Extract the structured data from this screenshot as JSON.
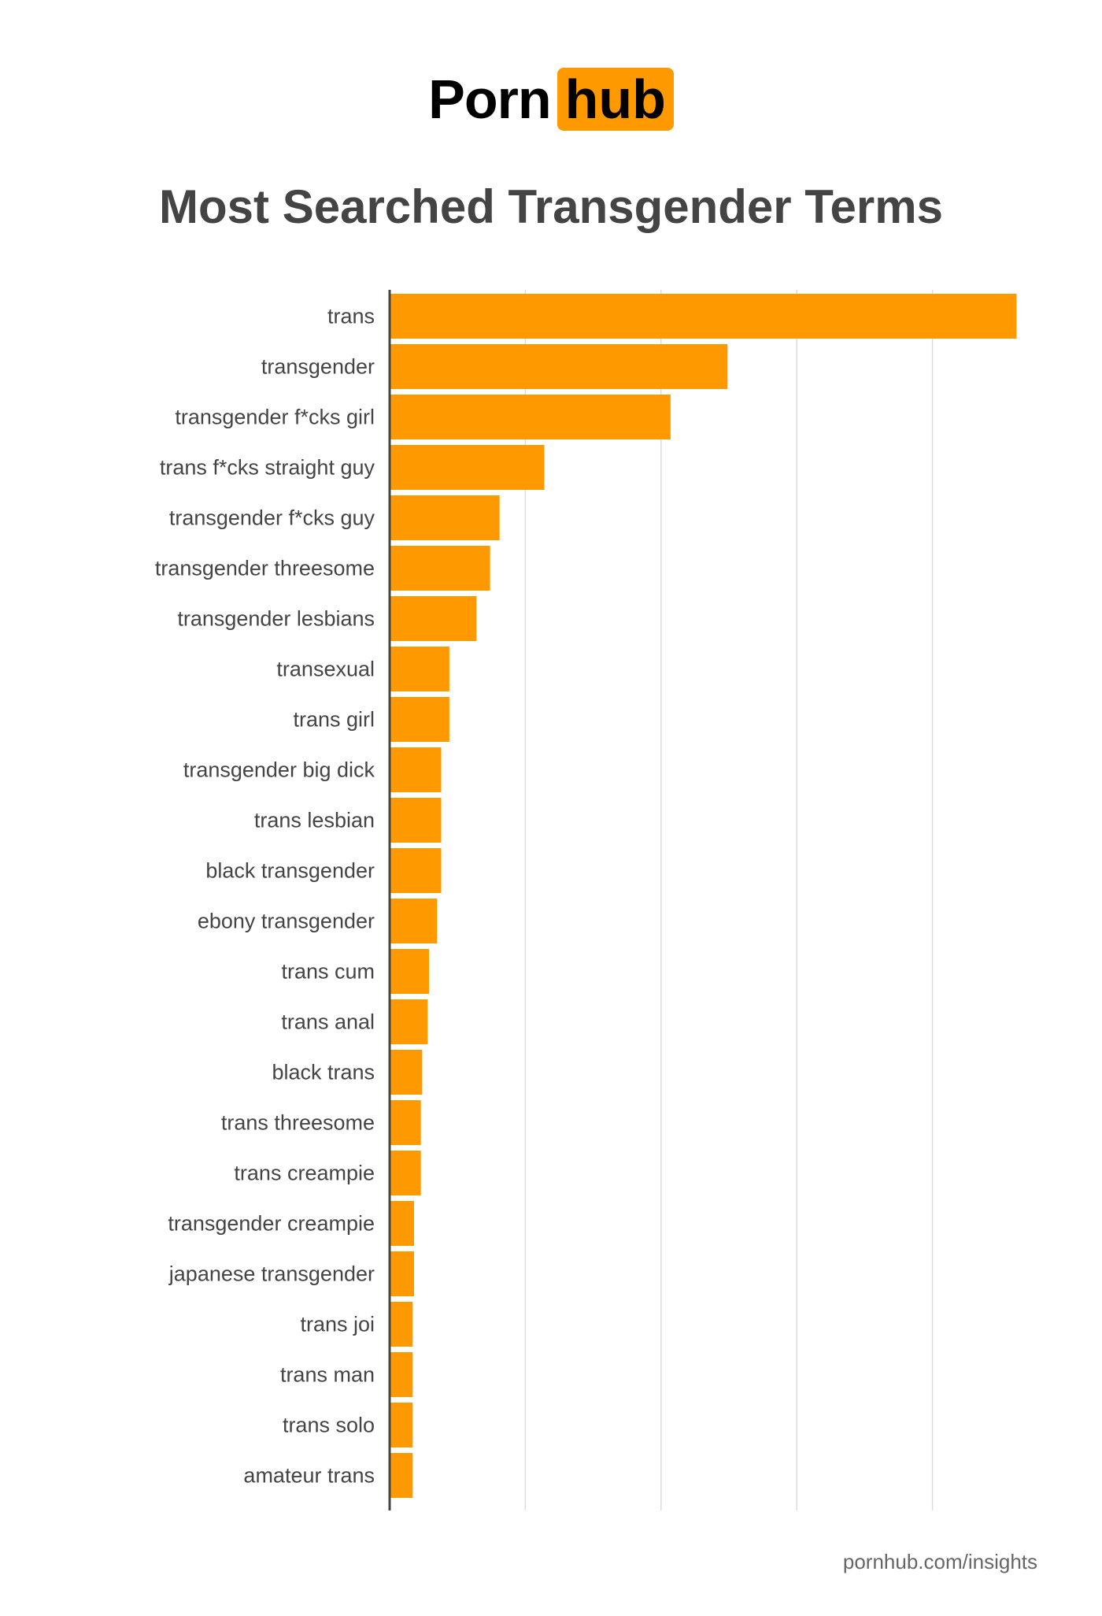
{
  "logo": {
    "part1": "Porn",
    "part2": "hub"
  },
  "footer": "pornhub.com/insights",
  "colors": {
    "bar": "#ff9900",
    "grid": "#dddddd",
    "axis": "#444444",
    "label": "#444444"
  },
  "chart_data": {
    "type": "bar",
    "orientation": "horizontal",
    "title": "Most Searched Transgender Terms",
    "xlabel": "",
    "ylabel": "",
    "xlim": [
      0,
      4.7
    ],
    "grid": true,
    "gridlines_at": [
      1,
      2,
      3,
      4
    ],
    "units": "relative (gridline units, unlabeled)",
    "categories": [
      "trans",
      "transgender",
      "transgender f*cks girl",
      "trans f*cks straight guy",
      "transgender f*cks guy",
      "transgender threesome",
      "transgender lesbians",
      "transexual",
      "trans girl",
      "transgender big dick",
      "trans lesbian",
      "black transgender",
      "ebony transgender",
      "trans cum",
      "trans anal",
      "black trans",
      "trans threesome",
      "trans creampie",
      "transgender creampie",
      "japanese transgender",
      "trans joi",
      "trans man",
      "trans solo",
      "amateur trans"
    ],
    "values": [
      4.62,
      2.49,
      2.07,
      1.14,
      0.81,
      0.74,
      0.64,
      0.44,
      0.44,
      0.38,
      0.38,
      0.38,
      0.35,
      0.29,
      0.28,
      0.24,
      0.23,
      0.23,
      0.18,
      0.18,
      0.17,
      0.17,
      0.17,
      0.17
    ]
  }
}
